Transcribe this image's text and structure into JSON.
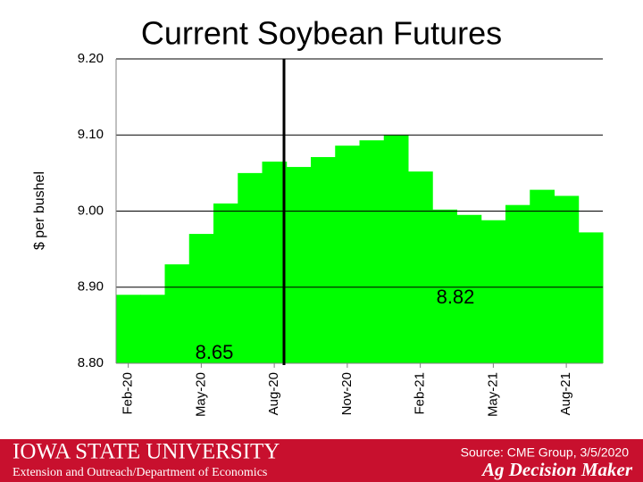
{
  "chart_data": {
    "type": "bar",
    "title": "Current Soybean Futures",
    "y_label": "$ per bushel",
    "categories": [
      "Feb-20",
      null,
      null,
      "May-20",
      null,
      null,
      "Aug-20",
      null,
      null,
      "Nov-20",
      null,
      null,
      "Feb-21",
      null,
      null,
      "May-21",
      null,
      null,
      "Aug-21",
      null
    ],
    "values": [
      8.89,
      8.89,
      8.93,
      8.97,
      9.01,
      9.05,
      9.065,
      9.058,
      9.071,
      9.086,
      9.093,
      9.1,
      9.052,
      9.002,
      8.995,
      8.988,
      9.008,
      9.028,
      9.02,
      8.972
    ],
    "color": "#00ff00",
    "ylim": [
      8.8,
      9.2
    ],
    "yticks": [
      {
        "value": 8.8,
        "label": "8.80"
      },
      {
        "value": 8.9,
        "label": "8.90"
      },
      {
        "value": 9.0,
        "label": "9.00"
      },
      {
        "value": 9.1,
        "label": "9.10"
      },
      {
        "value": 9.2,
        "label": "9.20"
      }
    ],
    "grid": true,
    "annotations": [
      "8.65",
      "8.82"
    ]
  },
  "footer": {
    "university": "Iowa State University",
    "department": "Extension and Outreach/Department of Economics",
    "source": "Source: CME Group, 3/5/2020",
    "brand": "Ag Decision Maker"
  }
}
